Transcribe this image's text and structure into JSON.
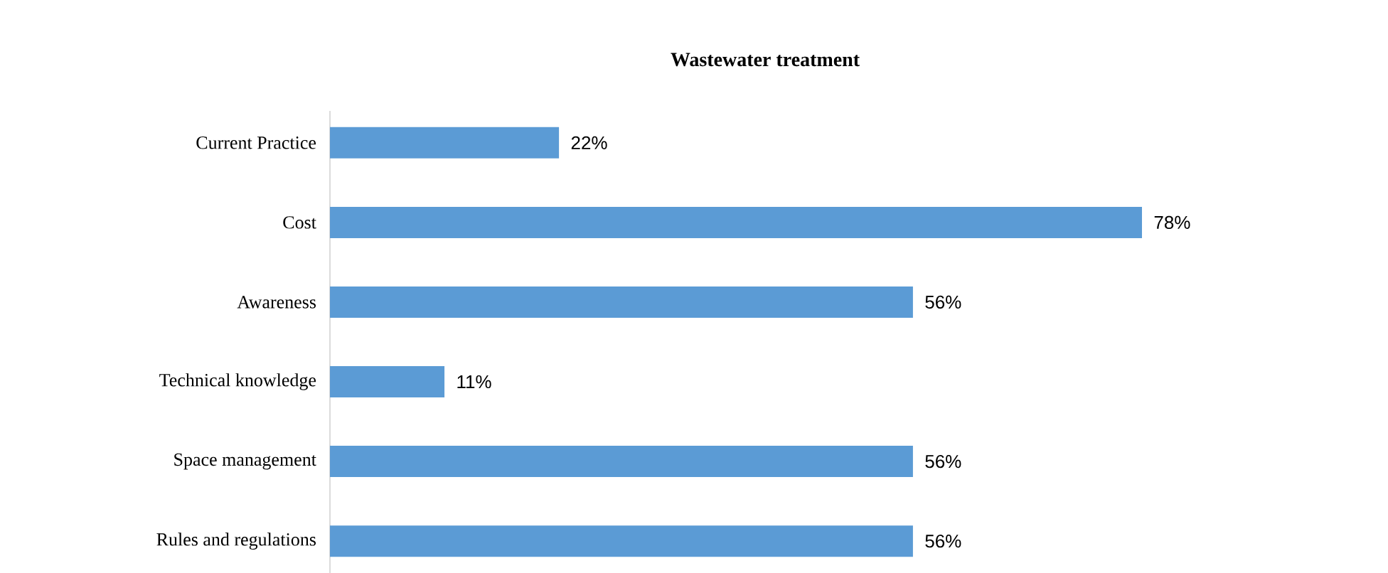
{
  "chart_data": {
    "type": "bar",
    "orientation": "horizontal",
    "title": "Wastewater treatment",
    "categories": [
      "Current Practice",
      "Cost",
      "Awareness",
      "Technical knowledge",
      "Space management",
      "Rules and regulations"
    ],
    "values": [
      22,
      78,
      56,
      11,
      56,
      56
    ],
    "value_labels": [
      "22%",
      "78%",
      "56%",
      "11%",
      "56%",
      "56%"
    ],
    "color": "#5b9bd5"
  }
}
